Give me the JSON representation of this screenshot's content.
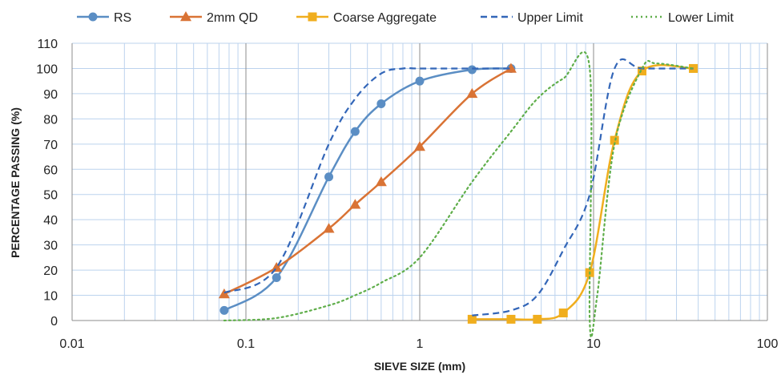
{
  "chart_data": {
    "type": "line",
    "xscale": "log",
    "xlabel": "SIEVE SIZE (mm)",
    "ylabel": "PERCENTAGE PASSING (%)",
    "xlim": [
      0.01,
      100
    ],
    "ylim": [
      0,
      110
    ],
    "x_ticks": [
      0.01,
      0.1,
      1,
      10,
      100
    ],
    "x_tick_labels": [
      "0.01",
      "0.1",
      "1",
      "10",
      "100"
    ],
    "y_ticks": [
      0,
      10,
      20,
      30,
      40,
      50,
      60,
      70,
      80,
      90,
      100,
      110
    ],
    "y_tick_labels": [
      "0",
      "10",
      "20",
      "30",
      "40",
      "50",
      "60",
      "70",
      "80",
      "90",
      "100",
      "110"
    ],
    "grid": true,
    "legend_position": "top",
    "series": [
      {
        "name": "RS",
        "color": "#5B8EC4",
        "marker": "circle",
        "dash": "solid",
        "x": [
          0.075,
          0.15,
          0.3,
          0.425,
          0.6,
          1.0,
          2.0,
          3.35
        ],
        "y": [
          4,
          17,
          57,
          75,
          86,
          95,
          99.5,
          100
        ]
      },
      {
        "name": "2mm QD",
        "color": "#D97335",
        "marker": "triangle",
        "dash": "solid",
        "x": [
          0.075,
          0.15,
          0.3,
          0.425,
          0.6,
          1.0,
          2.0,
          3.35
        ],
        "y": [
          10.5,
          21,
          36.5,
          46,
          55,
          69,
          90,
          100
        ]
      },
      {
        "name": "Coarse Aggregate",
        "color": "#F0AE1E",
        "marker": "square",
        "dash": "solid",
        "x": [
          2.0,
          3.35,
          4.75,
          6.7,
          9.5,
          13.2,
          19.0,
          37.5
        ],
        "y": [
          0.5,
          0.5,
          0.5,
          3,
          19,
          71.5,
          99,
          100
        ]
      },
      {
        "name": "Upper Limit",
        "color": "#3366B8",
        "marker": "none",
        "dash": "dashed",
        "x": [
          0.075,
          0.15,
          0.3,
          0.425,
          0.6,
          0.8,
          1.0,
          2.0,
          3.35,
          2.0,
          3.35,
          4.75,
          6.7,
          9.5,
          13.2,
          19.0,
          37.5
        ],
        "y": [
          11,
          21,
          70,
          88,
          98,
          100,
          100,
          100,
          100,
          2,
          4,
          10,
          28,
          50,
          100,
          100,
          100
        ]
      },
      {
        "name": "Lower Limit",
        "color": "#5FAE4A",
        "marker": "none",
        "dash": "dotted",
        "x": [
          0.075,
          0.15,
          0.3,
          0.425,
          0.6,
          1.0,
          2.0,
          3.35,
          4.75,
          6.7,
          9.5,
          9.5,
          10.5,
          13.2,
          19.0,
          23.0,
          37.5
        ],
        "y": [
          0,
          1,
          6,
          10,
          15,
          25,
          55,
          75,
          88,
          96,
          100,
          0,
          10,
          70,
          100,
          102,
          100
        ]
      }
    ]
  }
}
